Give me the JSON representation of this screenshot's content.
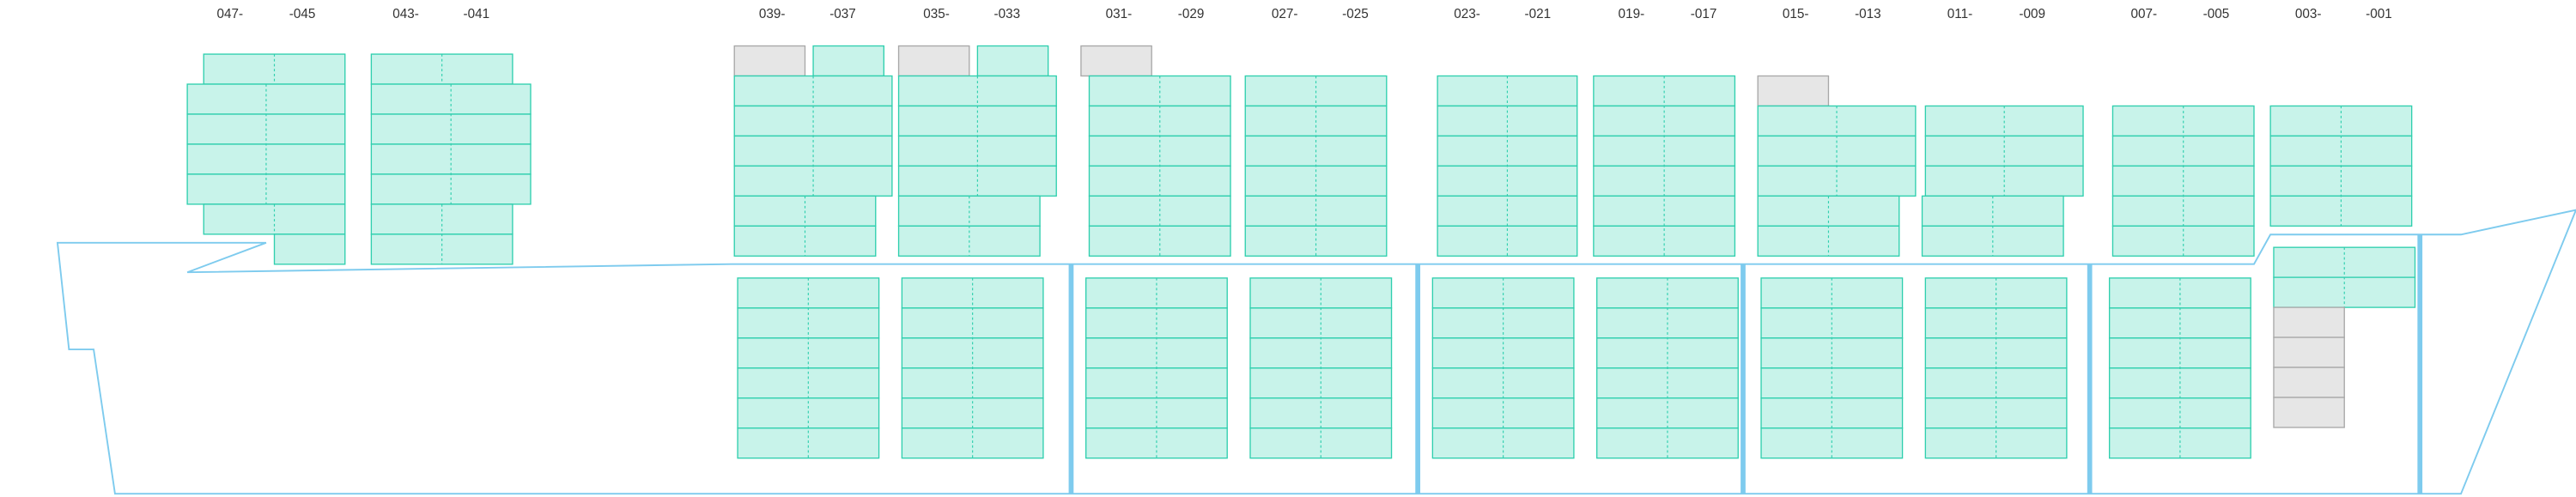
{
  "bays": [
    {
      "left": "047-",
      "right": "-045"
    },
    {
      "left": "043-",
      "right": "-041"
    },
    {
      "left": "039-",
      "right": "-037"
    },
    {
      "left": "035-",
      "right": "-033"
    },
    {
      "left": "031-",
      "right": "-029"
    },
    {
      "left": "027-",
      "right": "-025"
    },
    {
      "left": "023-",
      "right": "-021"
    },
    {
      "left": "019-",
      "right": "-017"
    },
    {
      "left": "015-",
      "right": "-013"
    },
    {
      "left": "011-",
      "right": "-009"
    },
    {
      "left": "007-",
      "right": "-005"
    },
    {
      "left": "003-",
      "right": "-001"
    }
  ]
}
